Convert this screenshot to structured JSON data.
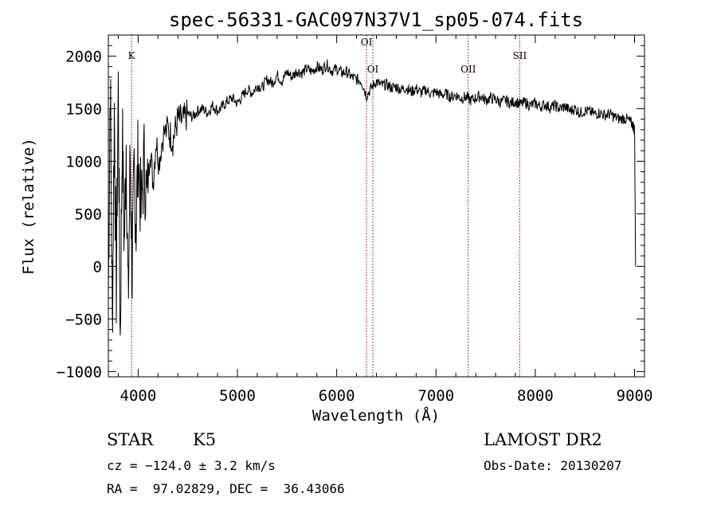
{
  "chart_data": {
    "type": "line",
    "title": "spec-56331-GAC097N37V1_sp05-074.fits",
    "xlabel": "Wavelength (Å)",
    "ylabel": "Flux (relative)",
    "xlim": [
      3700,
      9100
    ],
    "ylim": [
      -1050,
      2200
    ],
    "xticks": [
      4000,
      5000,
      6000,
      7000,
      8000,
      9000
    ],
    "xtick_labels": [
      "4000",
      "5000",
      "6000",
      "7000",
      "8000",
      "9000"
    ],
    "yticks": [
      -1000,
      -500,
      0,
      500,
      1000,
      1500,
      2000
    ],
    "ytick_labels": [
      "−1000",
      "−500",
      "0",
      "500",
      "1000",
      "1500",
      "2000"
    ],
    "spectrum": {
      "x": [
        3700,
        3720,
        3740,
        3760,
        3780,
        3800,
        3820,
        3840,
        3860,
        3880,
        3900,
        3920,
        3940,
        3960,
        3980,
        4000,
        4030,
        4060,
        4090,
        4120,
        4150,
        4180,
        4210,
        4250,
        4300,
        4350,
        4400,
        4450,
        4500,
        4550,
        4600,
        4650,
        4700,
        4750,
        4800,
        4850,
        4900,
        4950,
        5000,
        5050,
        5100,
        5150,
        5200,
        5250,
        5300,
        5350,
        5400,
        5450,
        5500,
        5550,
        5600,
        5650,
        5700,
        5750,
        5800,
        5850,
        5900,
        5950,
        6000,
        6050,
        6100,
        6150,
        6200,
        6250,
        6300,
        6350,
        6400,
        6450,
        6500,
        6550,
        6600,
        6650,
        6700,
        6750,
        6800,
        6850,
        6900,
        6950,
        7000,
        7050,
        7100,
        7150,
        7200,
        7250,
        7300,
        7350,
        7400,
        7450,
        7500,
        7550,
        7600,
        7650,
        7700,
        7750,
        7800,
        7850,
        7900,
        7950,
        8000,
        8050,
        8100,
        8150,
        8200,
        8250,
        8300,
        8350,
        8400,
        8450,
        8500,
        8550,
        8600,
        8650,
        8700,
        8750,
        8800,
        8850,
        8900,
        8950,
        8980,
        9000,
        9010
      ],
      "y": [
        -300,
        1850,
        -600,
        1500,
        -200,
        1700,
        -700,
        1300,
        200,
        1200,
        -400,
        1100,
        -100,
        900,
        400,
        1100,
        500,
        1000,
        600,
        1150,
        800,
        1200,
        1000,
        1250,
        1300,
        1200,
        1400,
        1380,
        1450,
        1420,
        1480,
        1500,
        1460,
        1530,
        1480,
        1520,
        1570,
        1600,
        1550,
        1620,
        1680,
        1650,
        1720,
        1700,
        1780,
        1740,
        1820,
        1760,
        1850,
        1800,
        1860,
        1840,
        1880,
        1850,
        1900,
        1870,
        1920,
        1860,
        1880,
        1840,
        1850,
        1800,
        1780,
        1760,
        1620,
        1700,
        1760,
        1720,
        1730,
        1700,
        1710,
        1680,
        1700,
        1660,
        1690,
        1650,
        1680,
        1640,
        1660,
        1630,
        1640,
        1610,
        1630,
        1600,
        1610,
        1580,
        1600,
        1620,
        1580,
        1600,
        1590,
        1560,
        1580,
        1550,
        1570,
        1540,
        1560,
        1530,
        1550,
        1520,
        1540,
        1510,
        1530,
        1500,
        1520,
        1480,
        1500,
        1460,
        1480,
        1470,
        1450,
        1460,
        1440,
        1450,
        1420,
        1400,
        1410,
        1380,
        1350,
        1300,
        0
      ]
    },
    "reference_lines": [
      {
        "label": "K",
        "x": 3934
      },
      {
        "label": "OI",
        "x": 6300
      },
      {
        "label": "OI",
        "x": 6364
      },
      {
        "label": "OII",
        "x": 7325
      },
      {
        "label": "SII",
        "x": 7843
      }
    ],
    "colors": {
      "spectrum": "#000000",
      "reference": "#8b0000",
      "axes": "#000000"
    }
  },
  "info": {
    "class": "STAR",
    "subclass": "K5",
    "survey": "LAMOST DR2",
    "redshift": "cz = −124.0 ± 3.2 km/s",
    "obs_date": "Obs-Date: 20130207",
    "coords": "RA =  97.02829, DEC =  36.43066"
  }
}
